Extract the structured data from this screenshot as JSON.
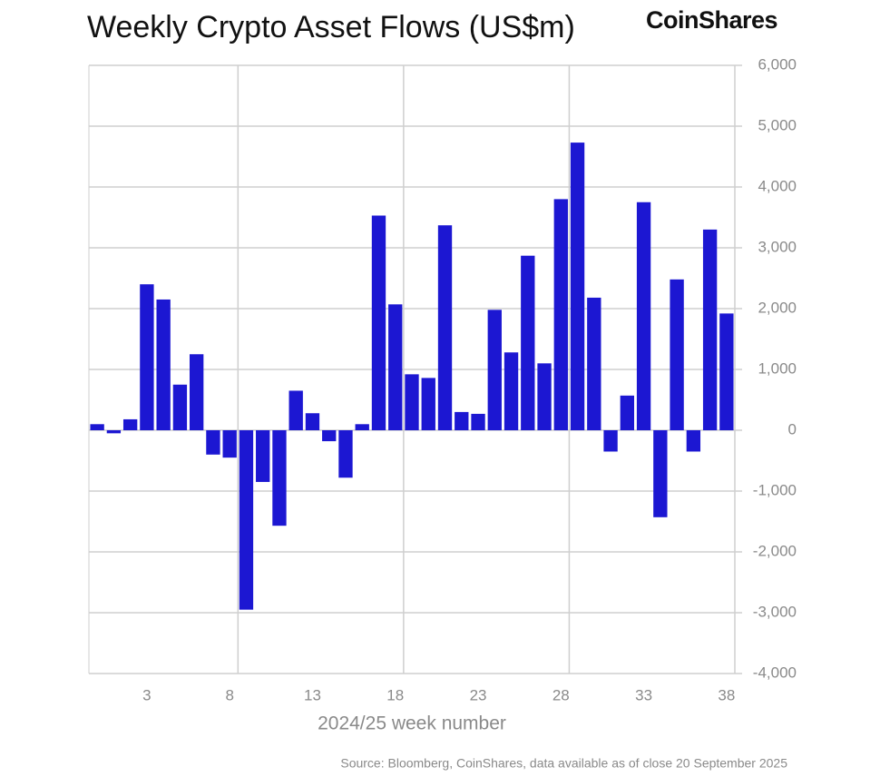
{
  "chart_data": {
    "type": "bar",
    "title": "Weekly Crypto Asset Flows (US$m)",
    "brand": "CoinShares",
    "x_label": "2024/25 week number",
    "source": "Source: Bloomberg, CoinShares, data available as of close 20 September 2025",
    "categories": [
      null,
      null,
      null,
      "3",
      null,
      null,
      null,
      null,
      "8",
      null,
      null,
      null,
      null,
      "13",
      null,
      null,
      null,
      null,
      "18",
      null,
      null,
      null,
      null,
      "23",
      null,
      null,
      null,
      null,
      "28",
      null,
      null,
      null,
      null,
      "33",
      null,
      null,
      null,
      null,
      "38"
    ],
    "values": [
      100,
      -50,
      180,
      2400,
      2150,
      750,
      1250,
      -400,
      -450,
      -2950,
      -850,
      -1570,
      650,
      280,
      -180,
      -780,
      100,
      3530,
      2070,
      920,
      860,
      3370,
      300,
      270,
      1980,
      1280,
      2870,
      1100,
      3800,
      4730,
      2180,
      -350,
      570,
      3750,
      -1430,
      2480,
      -350,
      3300,
      1920
    ],
    "color": "#1c17d2",
    "ylim": [
      -4000,
      6000
    ],
    "yticks": [
      {
        "value": -4000,
        "label": "-4,000"
      },
      {
        "value": -3000,
        "label": "-3,000"
      },
      {
        "value": -2000,
        "label": "-2,000"
      },
      {
        "value": -1000,
        "label": "-1,000"
      },
      0,
      {
        "value": 1000,
        "label": "1,000"
      },
      {
        "value": 2000,
        "label": "2,000"
      },
      {
        "value": 3000,
        "label": "3,000"
      },
      {
        "value": 4000,
        "label": "4,000"
      },
      {
        "value": 5000,
        "label": "5,000"
      },
      {
        "value": 6000,
        "label": "6,000"
      }
    ],
    "grid": true
  }
}
